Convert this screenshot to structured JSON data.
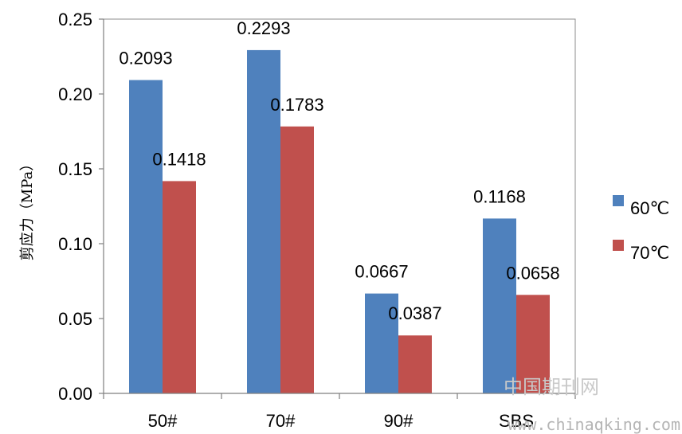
{
  "chart_data": {
    "type": "bar",
    "categories": [
      "50#",
      "70#",
      "90#",
      "SBS"
    ],
    "series": [
      {
        "name": "60℃",
        "color": "#4f81bd",
        "values": [
          0.2093,
          0.2293,
          0.0667,
          0.1168
        ]
      },
      {
        "name": "70℃",
        "color": "#c0504d",
        "values": [
          0.1418,
          0.1783,
          0.0387,
          0.0658
        ]
      }
    ],
    "data_labels": [
      [
        "0.2093",
        "0.2293",
        "0.0667",
        "0.1168"
      ],
      [
        "0.1418",
        "0.1783",
        "0.0387",
        "0.0658"
      ]
    ],
    "ylabel": "剪应力（MPa）",
    "ylim": [
      0,
      0.25
    ],
    "yticks": [
      "0.00",
      "0.05",
      "0.10",
      "0.15",
      "0.20",
      "0.25"
    ],
    "grid": false,
    "legend_position": "right"
  },
  "watermark": {
    "text": "中国期刊网",
    "url": "www.chinaqking.com"
  }
}
